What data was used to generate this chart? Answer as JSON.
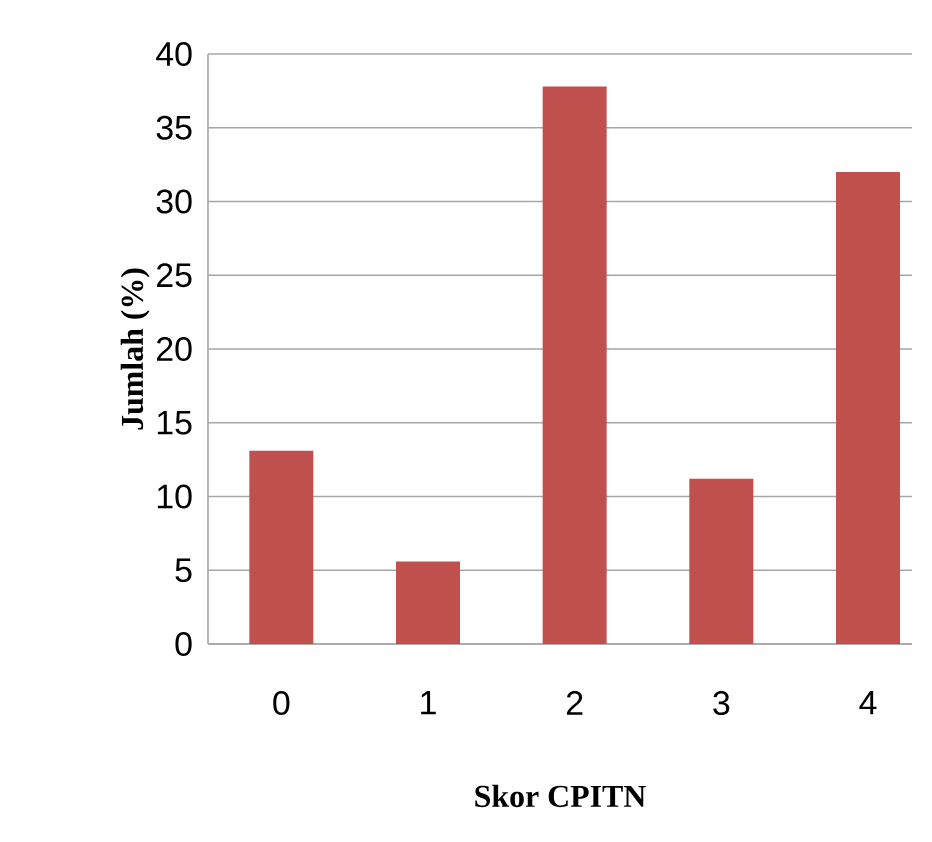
{
  "chart_data": {
    "type": "bar",
    "xlabel": "Skor CPITN",
    "ylabel": "Jumlah (%)",
    "categories": [
      "0",
      "1",
      "2",
      "3",
      "4"
    ],
    "values": [
      13.1,
      5.6,
      37.8,
      11.2,
      32.0
    ],
    "color": "#c0504d",
    "ylim": [
      0,
      40
    ],
    "yticks": [
      0,
      5,
      10,
      15,
      20,
      25,
      30,
      35,
      40
    ],
    "grid": "y"
  }
}
